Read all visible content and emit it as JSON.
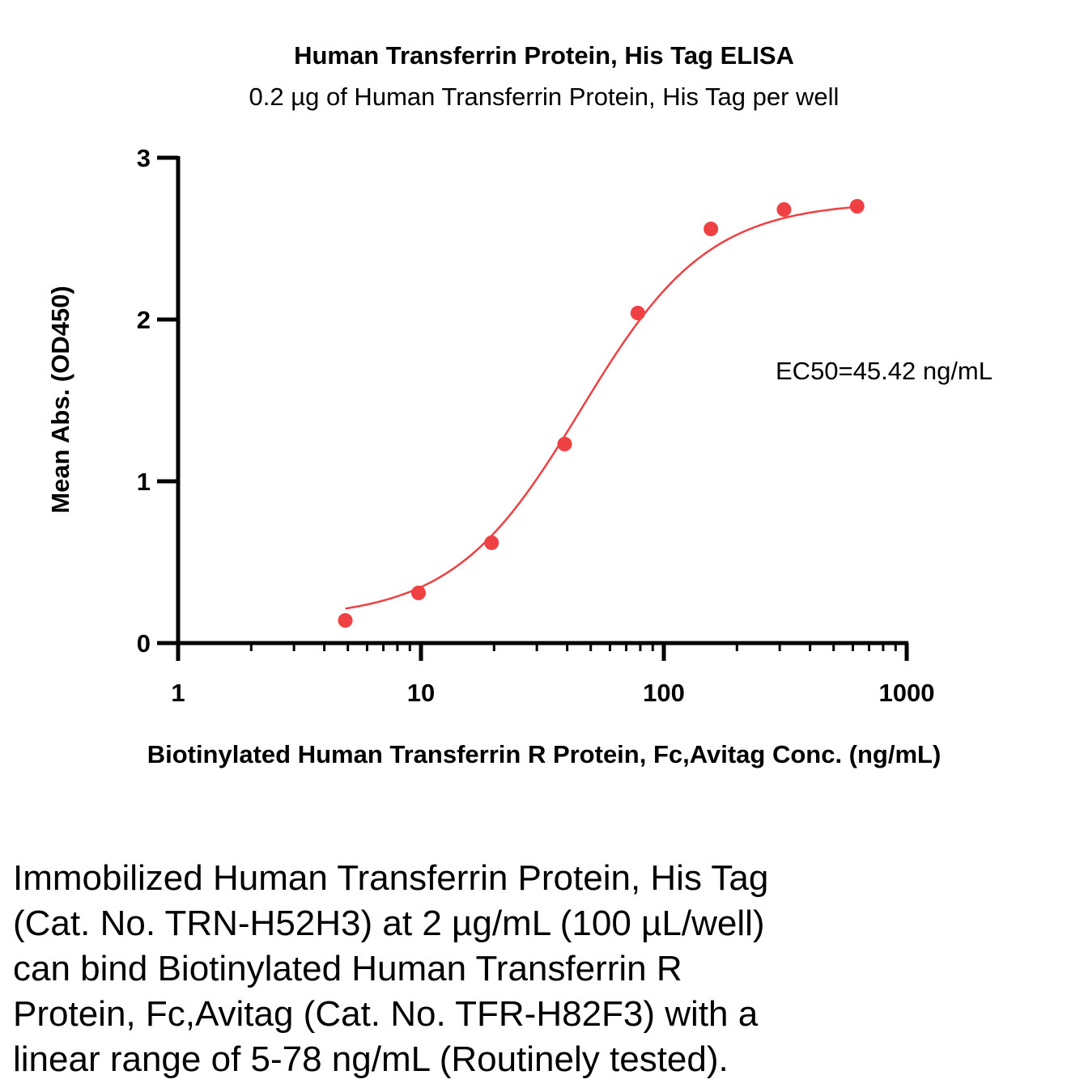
{
  "chart_data": {
    "type": "scatter",
    "title": "Human Transferrin Protein, His Tag ELISA",
    "subtitle": "0.2 µg of Human Transferrin Protein, His Tag per well",
    "xlabel": "Biotinylated Human Transferrin R Protein, Fc,Avitag Conc. (ng/mL)",
    "ylabel": "Mean Abs. (OD450)",
    "x_scale": "log",
    "xlim": [
      1,
      1000
    ],
    "ylim": [
      0,
      3
    ],
    "x_ticks": [
      "1",
      "10",
      "100",
      "1000"
    ],
    "y_ticks": [
      "0",
      "1",
      "2",
      "3"
    ],
    "grid": false,
    "annotation": "EC50=45.42 ng/mL",
    "series": [
      {
        "color": "#ef4043",
        "x": [
          4.88,
          9.77,
          19.53,
          39.06,
          78.13,
          156.25,
          312.5,
          625
        ],
        "y": [
          0.14,
          0.31,
          0.62,
          1.23,
          2.04,
          2.56,
          2.68,
          2.7
        ]
      }
    ],
    "fit": {
      "bottom": 0.15,
      "top": 2.73,
      "ec50": 45.42,
      "hill": 1.65
    }
  },
  "caption": {
    "lines": [
      "Immobilized Human Transferrin Protein, His Tag",
      "(Cat. No. TRN-H52H3) at 2 µg/mL (100 µL/well)",
      "can bind Biotinylated Human Transferrin R",
      "Protein, Fc,Avitag (Cat. No. TFR-H82F3) with a",
      "linear range of 5-78 ng/mL (Routinely tested)."
    ]
  }
}
